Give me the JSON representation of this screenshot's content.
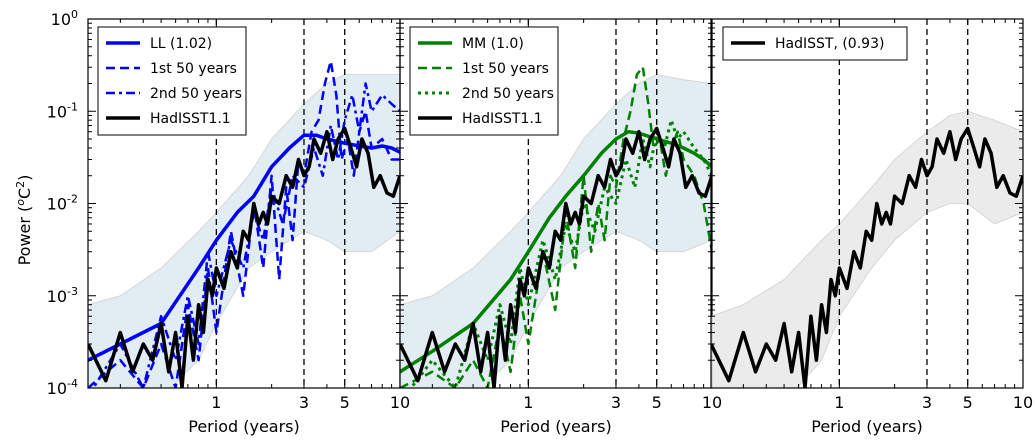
{
  "figure": {
    "ylabel": "Power (°C²)",
    "ylabel_base": "Power (",
    "ylabel_unit_sup": "o",
    "ylabel_unit": "C",
    "ylabel_unit_exp": "2",
    "ylabel_close": ")"
  },
  "chart_data": [
    {
      "type": "line",
      "xlabel": "Period (years)",
      "xscale": "log",
      "yscale": "log",
      "xlim": [
        0.2,
        10
      ],
      "ylim": [
        0.0001,
        1
      ],
      "xticks": [
        {
          "value": 1,
          "label": "1"
        },
        {
          "value": 3,
          "label": "3"
        },
        {
          "value": 5,
          "label": "5"
        },
        {
          "value": 10,
          "label": "10"
        }
      ],
      "yticks": [
        {
          "value": 0.0001,
          "base": "10",
          "exp": "-4"
        },
        {
          "value": 0.001,
          "base": "10",
          "exp": "-3"
        },
        {
          "value": 0.01,
          "base": "10",
          "exp": "-2"
        },
        {
          "value": 0.1,
          "base": "10",
          "exp": "-1"
        },
        {
          "value": 1,
          "base": "10",
          "exp": "0"
        }
      ],
      "vlines": [
        1,
        3,
        5
      ],
      "legend_position": "top-left",
      "band": {
        "x": [
          0.2,
          0.3,
          0.5,
          0.8,
          1.0,
          1.5,
          2.0,
          3.0,
          4.0,
          5.0,
          7.0,
          10.0
        ],
        "lower": [
          3e-05,
          4e-05,
          8e-05,
          0.0002,
          0.0005,
          0.002,
          0.003,
          0.005,
          0.004,
          0.003,
          0.003,
          0.005
        ],
        "upper": [
          0.0008,
          0.001,
          0.002,
          0.005,
          0.008,
          0.02,
          0.05,
          0.12,
          0.2,
          0.25,
          0.25,
          0.25
        ],
        "color": "#dce9f2"
      },
      "series": [
        {
          "name": "LL (1.02)",
          "color": "#0000ff",
          "style": "solid",
          "width": 3.5,
          "x": [
            0.2,
            0.3,
            0.5,
            0.8,
            1.0,
            1.3,
            1.6,
            2.0,
            2.5,
            3.0,
            3.5,
            4.0,
            5.0,
            6.0,
            7.0,
            8.0,
            9.0,
            10.0
          ],
          "y": [
            0.0002,
            0.0003,
            0.0005,
            0.002,
            0.004,
            0.008,
            0.012,
            0.025,
            0.04,
            0.055,
            0.055,
            0.05,
            0.045,
            0.042,
            0.04,
            0.042,
            0.04,
            0.036
          ]
        },
        {
          "name": "1st 50 years",
          "color": "#0000ff",
          "style": "dashed",
          "width": 2.5,
          "x": [
            0.2,
            0.3,
            0.4,
            0.5,
            0.6,
            0.7,
            0.8,
            0.9,
            1.0,
            1.2,
            1.4,
            1.6,
            1.8,
            2.0,
            2.2,
            2.4,
            2.6,
            2.8,
            3.0,
            3.3,
            3.6,
            3.9,
            4.2,
            4.5,
            4.8,
            5.2,
            5.6,
            6.0,
            6.5,
            7.0,
            8.0,
            9.0,
            10.0
          ],
          "y": [
            0.0001,
            0.0002,
            0.0001,
            0.0003,
            0.0001,
            0.0008,
            0.0002,
            0.002,
            0.0004,
            0.005,
            0.001,
            0.01,
            0.002,
            0.02,
            0.0015,
            0.015,
            0.004,
            0.03,
            0.02,
            0.06,
            0.08,
            0.2,
            0.35,
            0.15,
            0.03,
            0.05,
            0.02,
            0.06,
            0.1,
            0.04,
            0.05,
            0.03,
            0.03
          ]
        },
        {
          "name": "2nd 50 years",
          "color": "#0000ff",
          "style": "dashdot",
          "width": 2.5,
          "x": [
            0.2,
            0.3,
            0.4,
            0.5,
            0.6,
            0.7,
            0.8,
            0.9,
            1.0,
            1.2,
            1.4,
            1.6,
            1.8,
            2.0,
            2.3,
            2.6,
            3.0,
            3.4,
            3.8,
            4.2,
            4.6,
            5.0,
            5.5,
            6.0,
            6.5,
            7.0,
            8.0,
            9.0,
            10.0
          ],
          "y": [
            8e-05,
            0.0003,
            0.0001,
            0.0006,
            0.0002,
            0.001,
            0.0003,
            0.003,
            0.001,
            0.004,
            0.002,
            0.008,
            0.004,
            0.015,
            0.006,
            0.02,
            0.015,
            0.04,
            0.02,
            0.07,
            0.03,
            0.08,
            0.15,
            0.06,
            0.2,
            0.1,
            0.15,
            0.12,
            0.1
          ]
        },
        {
          "name": "HadISST1.1",
          "color": "#000000",
          "style": "solid",
          "width": 3.5,
          "x": [
            0.2,
            0.25,
            0.3,
            0.35,
            0.4,
            0.45,
            0.5,
            0.55,
            0.6,
            0.65,
            0.7,
            0.75,
            0.8,
            0.85,
            0.9,
            0.95,
            1.0,
            1.1,
            1.2,
            1.3,
            1.4,
            1.5,
            1.6,
            1.7,
            1.8,
            1.9,
            2.0,
            2.2,
            2.4,
            2.6,
            2.8,
            3.0,
            3.2,
            3.4,
            3.7,
            4.0,
            4.3,
            4.6,
            5.0,
            5.4,
            5.8,
            6.2,
            6.7,
            7.2,
            7.8,
            8.5,
            9.2,
            10.0
          ],
          "y": [
            0.0003,
            0.00012,
            0.0004,
            0.00015,
            0.0003,
            0.0002,
            0.0005,
            0.00015,
            0.0004,
            0.0001,
            0.0006,
            0.0002,
            0.0008,
            0.0004,
            0.0015,
            0.001,
            0.002,
            0.0012,
            0.003,
            0.002,
            0.005,
            0.004,
            0.01,
            0.006,
            0.008,
            0.006,
            0.012,
            0.01,
            0.02,
            0.015,
            0.03,
            0.02,
            0.025,
            0.05,
            0.035,
            0.06,
            0.03,
            0.05,
            0.065,
            0.04,
            0.025,
            0.05,
            0.035,
            0.015,
            0.02,
            0.013,
            0.012,
            0.02
          ]
        }
      ]
    },
    {
      "type": "line",
      "xlabel": "Period (years)",
      "xscale": "log",
      "yscale": "log",
      "xlim": [
        0.2,
        10
      ],
      "ylim": [
        0.0001,
        1
      ],
      "xticks": [
        {
          "value": 1,
          "label": "1"
        },
        {
          "value": 3,
          "label": "3"
        },
        {
          "value": 5,
          "label": "5"
        },
        {
          "value": 10,
          "label": "10"
        }
      ],
      "vlines": [
        1,
        3,
        5
      ],
      "legend_position": "top-left",
      "band": {
        "x": [
          0.2,
          0.3,
          0.5,
          0.8,
          1.0,
          1.5,
          2.0,
          3.0,
          4.0,
          5.0,
          7.0,
          10.0
        ],
        "lower": [
          3e-05,
          4e-05,
          8e-05,
          0.0002,
          0.0005,
          0.002,
          0.003,
          0.005,
          0.004,
          0.003,
          0.003,
          0.004
        ],
        "upper": [
          0.0008,
          0.001,
          0.002,
          0.005,
          0.008,
          0.02,
          0.05,
          0.12,
          0.2,
          0.25,
          0.22,
          0.2
        ],
        "color": "#dce9f2"
      },
      "series": [
        {
          "name": "MM (1.0)",
          "color": "#008000",
          "style": "solid",
          "width": 3.5,
          "x": [
            0.2,
            0.3,
            0.5,
            0.8,
            1.0,
            1.3,
            1.6,
            2.0,
            2.5,
            3.0,
            3.5,
            4.0,
            5.0,
            6.0,
            7.0,
            8.0,
            9.0,
            10.0
          ],
          "y": [
            0.00015,
            0.00025,
            0.0005,
            0.0015,
            0.003,
            0.007,
            0.012,
            0.02,
            0.035,
            0.05,
            0.06,
            0.058,
            0.05,
            0.045,
            0.04,
            0.035,
            0.03,
            0.025
          ]
        },
        {
          "name": "1st 50 years",
          "color": "#008000",
          "style": "dashed",
          "width": 2.5,
          "x": [
            0.2,
            0.3,
            0.4,
            0.5,
            0.6,
            0.7,
            0.8,
            0.9,
            1.0,
            1.2,
            1.4,
            1.6,
            1.8,
            2.0,
            2.2,
            2.4,
            2.6,
            2.8,
            3.0,
            3.3,
            3.6,
            3.9,
            4.2,
            4.5,
            4.8,
            5.2,
            5.6,
            6.0,
            6.5,
            7.0,
            8.0,
            9.0,
            10.0
          ],
          "y": [
            0.0001,
            0.00015,
            0.0001,
            0.0002,
            0.0001,
            0.0005,
            0.00015,
            0.001,
            0.0003,
            0.003,
            0.0007,
            0.008,
            0.002,
            0.02,
            0.003,
            0.01,
            0.004,
            0.02,
            0.015,
            0.05,
            0.1,
            0.25,
            0.3,
            0.12,
            0.04,
            0.05,
            0.02,
            0.04,
            0.06,
            0.03,
            0.02,
            0.01,
            0.003
          ]
        },
        {
          "name": "2nd 50 years",
          "color": "#008000",
          "style": "dotted",
          "width": 3,
          "x": [
            0.2,
            0.3,
            0.4,
            0.5,
            0.6,
            0.7,
            0.8,
            0.9,
            1.0,
            1.2,
            1.4,
            1.6,
            1.8,
            2.0,
            2.3,
            2.6,
            3.0,
            3.4,
            3.8,
            4.2,
            4.6,
            5.0,
            5.5,
            6.0,
            6.5,
            7.0,
            8.0,
            9.0,
            10.0
          ],
          "y": [
            7e-05,
            0.0002,
            0.0001,
            0.0005,
            0.0002,
            0.0008,
            0.0003,
            0.002,
            0.0008,
            0.004,
            0.0015,
            0.006,
            0.003,
            0.01,
            0.005,
            0.015,
            0.01,
            0.03,
            0.015,
            0.05,
            0.025,
            0.06,
            0.04,
            0.08,
            0.05,
            0.06,
            0.04,
            0.03,
            0.02
          ]
        },
        {
          "name": "HadISST1.1",
          "color": "#000000",
          "style": "solid",
          "width": 3.5,
          "x": [
            0.2,
            0.25,
            0.3,
            0.35,
            0.4,
            0.45,
            0.5,
            0.55,
            0.6,
            0.65,
            0.7,
            0.75,
            0.8,
            0.85,
            0.9,
            0.95,
            1.0,
            1.1,
            1.2,
            1.3,
            1.4,
            1.5,
            1.6,
            1.7,
            1.8,
            1.9,
            2.0,
            2.2,
            2.4,
            2.6,
            2.8,
            3.0,
            3.2,
            3.4,
            3.7,
            4.0,
            4.3,
            4.6,
            5.0,
            5.4,
            5.8,
            6.2,
            6.7,
            7.2,
            7.8,
            8.5,
            9.2,
            10.0
          ],
          "y": [
            0.0003,
            0.00012,
            0.0004,
            0.00015,
            0.0003,
            0.0002,
            0.0005,
            0.00015,
            0.0004,
            0.0001,
            0.0006,
            0.0002,
            0.0008,
            0.0004,
            0.0015,
            0.001,
            0.002,
            0.0012,
            0.003,
            0.002,
            0.005,
            0.004,
            0.01,
            0.006,
            0.008,
            0.006,
            0.012,
            0.01,
            0.02,
            0.015,
            0.03,
            0.02,
            0.025,
            0.05,
            0.035,
            0.06,
            0.03,
            0.05,
            0.065,
            0.04,
            0.025,
            0.05,
            0.035,
            0.015,
            0.02,
            0.013,
            0.012,
            0.02
          ]
        }
      ]
    },
    {
      "type": "line",
      "xlabel": "Period (years)",
      "xscale": "log",
      "yscale": "log",
      "xlim": [
        0.2,
        10
      ],
      "ylim": [
        0.0001,
        1
      ],
      "xticks": [
        {
          "value": 1,
          "label": "1"
        },
        {
          "value": 3,
          "label": "3"
        },
        {
          "value": 5,
          "label": "5"
        },
        {
          "value": 10,
          "label": "10"
        }
      ],
      "vlines": [
        1,
        3,
        5
      ],
      "legend_position": "top-left",
      "band": {
        "x": [
          0.2,
          0.3,
          0.5,
          0.8,
          1.0,
          1.5,
          2.0,
          3.0,
          4.0,
          5.0,
          7.0,
          10.0
        ],
        "lower": [
          3e-05,
          4e-05,
          7e-05,
          0.0002,
          0.0006,
          0.002,
          0.004,
          0.008,
          0.01,
          0.01,
          0.006,
          0.008
        ],
        "upper": [
          0.0006,
          0.0008,
          0.0015,
          0.004,
          0.006,
          0.015,
          0.03,
          0.06,
          0.09,
          0.1,
          0.08,
          0.06
        ],
        "color": "#e8e8e8"
      },
      "series": [
        {
          "name": "HadISST, (0.93)",
          "color": "#000000",
          "style": "solid",
          "width": 3.5,
          "x": [
            0.2,
            0.25,
            0.3,
            0.35,
            0.4,
            0.45,
            0.5,
            0.55,
            0.6,
            0.65,
            0.7,
            0.75,
            0.8,
            0.85,
            0.9,
            0.95,
            1.0,
            1.1,
            1.2,
            1.3,
            1.4,
            1.5,
            1.6,
            1.7,
            1.8,
            1.9,
            2.0,
            2.2,
            2.4,
            2.6,
            2.8,
            3.0,
            3.2,
            3.4,
            3.7,
            4.0,
            4.3,
            4.6,
            5.0,
            5.4,
            5.8,
            6.2,
            6.7,
            7.2,
            7.8,
            8.5,
            9.2,
            10.0
          ],
          "y": [
            0.0003,
            0.00012,
            0.0004,
            0.00015,
            0.0003,
            0.0002,
            0.0005,
            0.00015,
            0.0004,
            0.0001,
            0.0006,
            0.0002,
            0.0008,
            0.0004,
            0.0015,
            0.001,
            0.002,
            0.0012,
            0.003,
            0.002,
            0.005,
            0.004,
            0.01,
            0.006,
            0.008,
            0.006,
            0.012,
            0.01,
            0.02,
            0.015,
            0.03,
            0.02,
            0.025,
            0.05,
            0.035,
            0.06,
            0.03,
            0.05,
            0.065,
            0.04,
            0.025,
            0.05,
            0.035,
            0.015,
            0.02,
            0.013,
            0.012,
            0.02
          ]
        }
      ]
    }
  ]
}
